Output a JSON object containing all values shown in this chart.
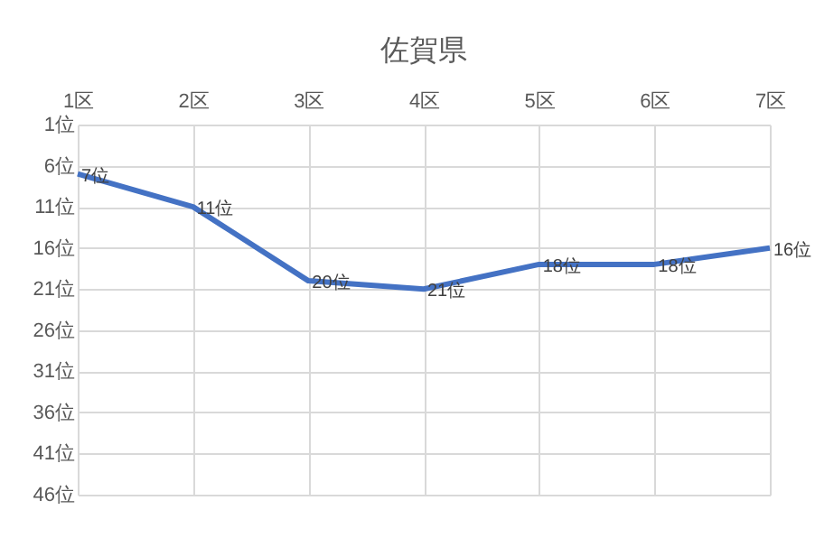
{
  "chart_data": {
    "type": "line",
    "title": "佐賀県",
    "categories": [
      "1区",
      "2区",
      "3区",
      "4区",
      "5区",
      "6区",
      "7区"
    ],
    "series": [
      {
        "color": "#4472c4",
        "values": [
          7,
          11,
          20,
          21,
          18,
          18,
          16
        ],
        "value_labels": [
          "7位",
          "11位",
          "20位",
          "21位",
          "18位",
          "18位",
          "16位"
        ]
      }
    ],
    "ylim": [
      46,
      1
    ],
    "yticks": [
      {
        "value": 1,
        "label": "1位"
      },
      {
        "value": 6,
        "label": "6位"
      },
      {
        "value": 11,
        "label": "11位"
      },
      {
        "value": 16,
        "label": "16位"
      },
      {
        "value": 21,
        "label": "21位"
      },
      {
        "value": 26,
        "label": "26位"
      },
      {
        "value": 31,
        "label": "31位"
      },
      {
        "value": 36,
        "label": "36位"
      },
      {
        "value": 41,
        "label": "41位"
      },
      {
        "value": 46,
        "label": "46位"
      }
    ],
    "grid": true,
    "marker": "none",
    "line_style": "solid"
  }
}
